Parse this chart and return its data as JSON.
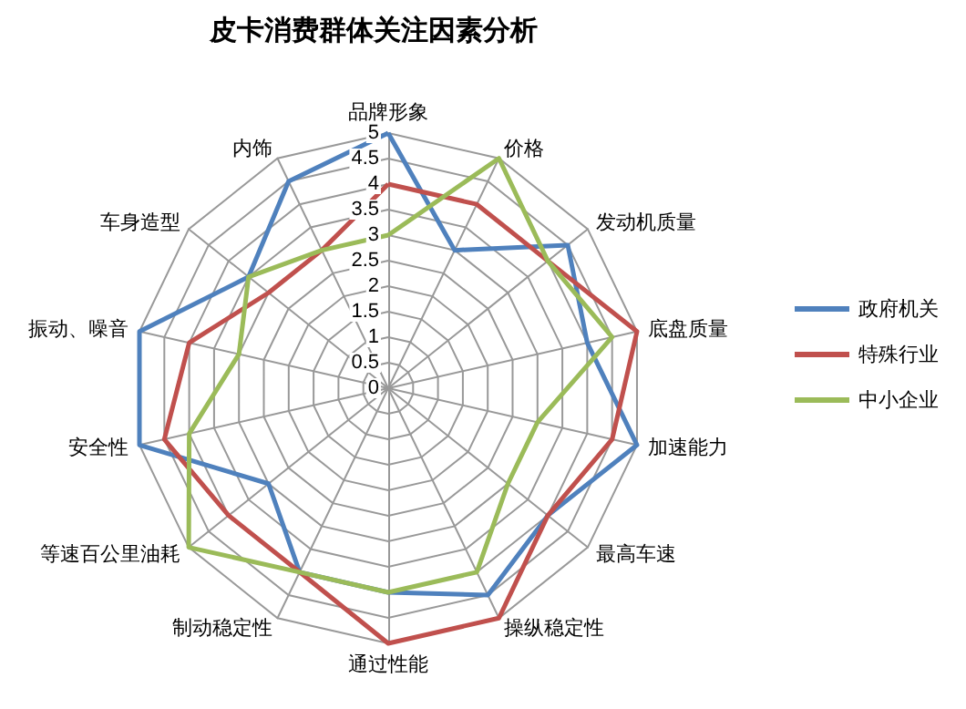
{
  "chart_data": {
    "type": "radar",
    "title": "皮卡消费群体关注因素分析",
    "categories": [
      "品牌形象",
      "价格",
      "发动机质量",
      "底盘质量",
      "加速能力",
      "最高车速",
      "操纵稳定性",
      "通过性能",
      "制动稳定性",
      "等速百公里油耗",
      "安全性",
      "振动、噪音",
      "车身造型",
      "内饰"
    ],
    "series": [
      {
        "name": "政府机关",
        "color": "#4f81bd",
        "values": [
          5,
          3,
          4.5,
          4,
          5,
          4,
          4.5,
          4,
          4,
          3,
          5,
          5,
          3.5,
          4.5
        ]
      },
      {
        "name": "特殊行业",
        "color": "#c0504d",
        "values": [
          4,
          4,
          4,
          5,
          4.5,
          4,
          5,
          5,
          4,
          4,
          4.5,
          4,
          3,
          3
        ]
      },
      {
        "name": "中小企业",
        "color": "#9bbb59",
        "values": [
          3,
          5,
          4,
          4.5,
          3,
          3,
          4,
          4,
          4,
          5,
          4,
          3,
          3.5,
          3
        ]
      }
    ],
    "ylim": [
      0,
      5
    ],
    "yticks": [
      0,
      0.5,
      1,
      1.5,
      2,
      2.5,
      3,
      3.5,
      4,
      4.5,
      5
    ],
    "legend": "right",
    "marker": "none",
    "grid": true
  }
}
